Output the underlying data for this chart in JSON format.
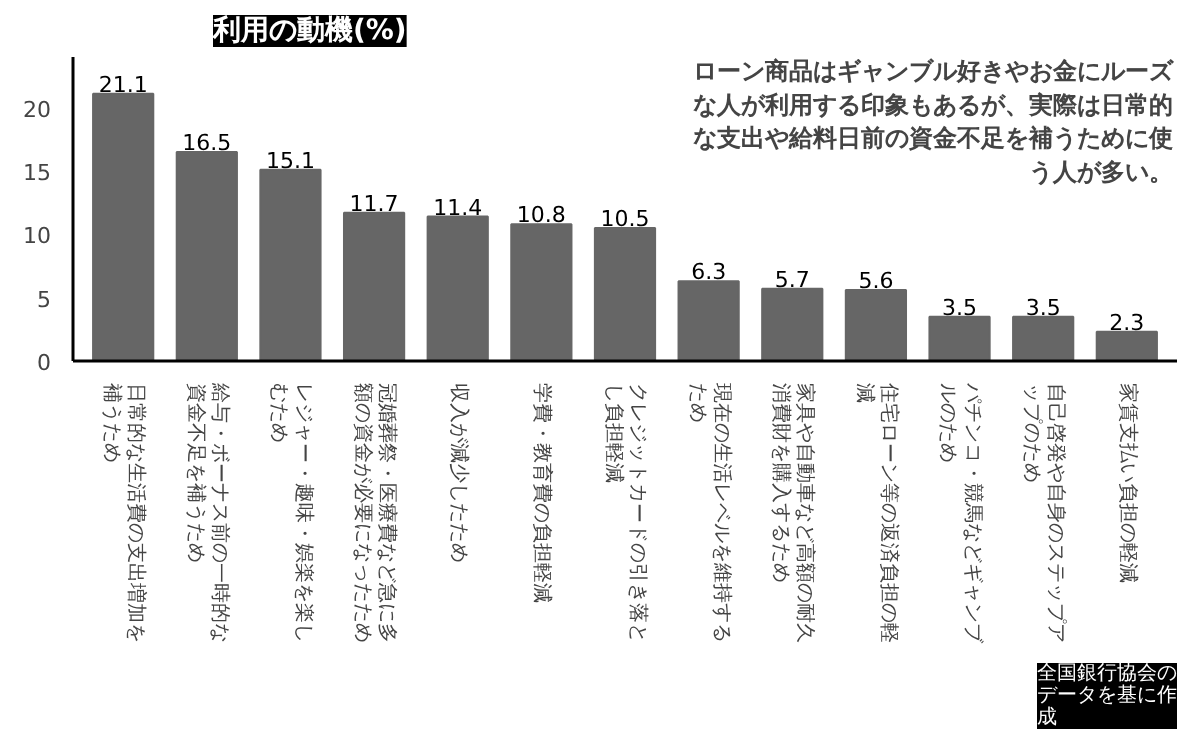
{
  "chart_data": {
    "type": "bar",
    "title": "利用の動機(%)",
    "subtitle": "ローン商品はギャンブル好きやお金にルーズな人が利用する印象もあるが、実際は日常的な支出や給料日前の資金不足を補うために使う人が多い。",
    "categories": [
      "日常的な生活費の支出増加を補うため",
      "給与・ボーナス前の一時的な資金不足を補うため",
      "レジャー・趣味・娯楽を楽しむため",
      "冠婚葬祭・医療費など急に多額の資金が必要になったため",
      "収入が減少したため",
      "学費・教育費の負担軽減",
      "クレジットカードの引き落とし負担軽減",
      "現在の生活レベルを維持するため",
      "家具や自動車など高額の耐久消費財を購入するため",
      "住宅ローン等の返済負担の軽減",
      "パチンコ・競馬などギャンブルのため",
      "自己啓発や自身のステップアップのため",
      "家賃支払い負担の軽減"
    ],
    "values": [
      21.1,
      16.5,
      15.1,
      11.7,
      11.4,
      10.8,
      10.5,
      6.3,
      5.7,
      5.6,
      3.5,
      3.5,
      2.3
    ],
    "color": "#666666",
    "data_labels": true,
    "ylim": [
      0,
      24
    ],
    "yticks": [
      0,
      5,
      10,
      15,
      20
    ],
    "annotations": [
      "全国銀行協会のデータを基に作成"
    ]
  }
}
